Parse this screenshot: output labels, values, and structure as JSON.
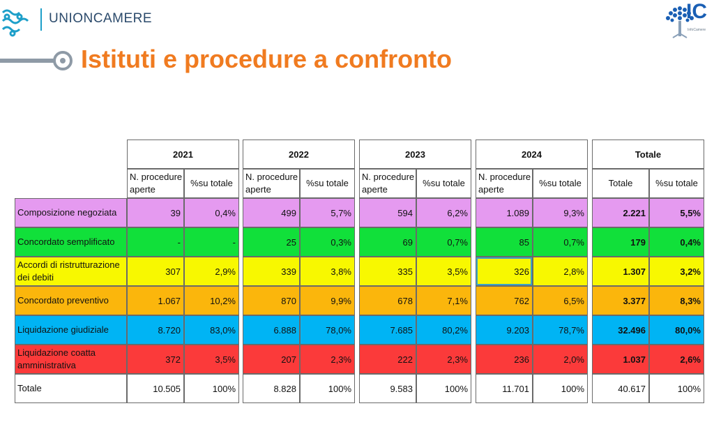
{
  "header": {
    "brand": "UNIONCAMERE",
    "logo_right_text": "IC",
    "logo_right_sub": "InfoCamere"
  },
  "slide": {
    "title": "Istituti e procedure a confronto"
  },
  "colors": {
    "accent": "#f07b20",
    "row_colors": [
      "#e59af0",
      "#11e03a",
      "#f8f800",
      "#fbb60c",
      "#00b4f4",
      "#fb3a3a",
      "#ffffff"
    ]
  },
  "table": {
    "groups": [
      {
        "label": "2021",
        "sub": [
          "N. procedure aperte",
          "%su totale"
        ]
      },
      {
        "label": "2022",
        "sub": [
          "N. procedure aperte",
          "%su totale"
        ]
      },
      {
        "label": "2023",
        "sub": [
          "N. procedure aperte",
          "%su totale"
        ]
      },
      {
        "label": "2024",
        "sub": [
          "N. procedure aperte",
          "%su totale"
        ]
      },
      {
        "label": "Totale",
        "sub": [
          "Totale",
          "%su totale"
        ]
      }
    ],
    "rows": [
      {
        "label": "Composizione negoziata",
        "values": [
          "39",
          "0,4%",
          "499",
          "5,7%",
          "594",
          "6,2%",
          "1.089",
          "9,3%",
          "2.221",
          "5,5%"
        ]
      },
      {
        "label": "Concordato semplificato",
        "values": [
          "-",
          "-",
          "25",
          "0,3%",
          "69",
          "0,7%",
          "85",
          "0,7%",
          "179",
          "0,4%"
        ]
      },
      {
        "label": "Accordi di ristrutturazione dei debiti",
        "values": [
          "307",
          "2,9%",
          "339",
          "3,8%",
          "335",
          "3,5%",
          "326",
          "2,8%",
          "1.307",
          "3,2%"
        ]
      },
      {
        "label": "Concordato preventivo",
        "values": [
          "1.067",
          "10,2%",
          "870",
          "9,9%",
          "678",
          "7,1%",
          "762",
          "6,5%",
          "3.377",
          "8,3%"
        ]
      },
      {
        "label": "Liquidazione giudiziale",
        "values": [
          "8.720",
          "83,0%",
          "6.888",
          "78,0%",
          "7.685",
          "80,2%",
          "9.203",
          "78,7%",
          "32.496",
          "80,0%"
        ]
      },
      {
        "label": "Liquidazione coatta amministrativa",
        "values": [
          "372",
          "3,5%",
          "207",
          "2,3%",
          "222",
          "2,3%",
          "236",
          "2,0%",
          "1.037",
          "2,6%"
        ]
      },
      {
        "label": "Totale",
        "values": [
          "10.505",
          "100%",
          "8.828",
          "100%",
          "9.583",
          "100%",
          "11.701",
          "100%",
          "40.617",
          "100%"
        ]
      }
    ]
  }
}
